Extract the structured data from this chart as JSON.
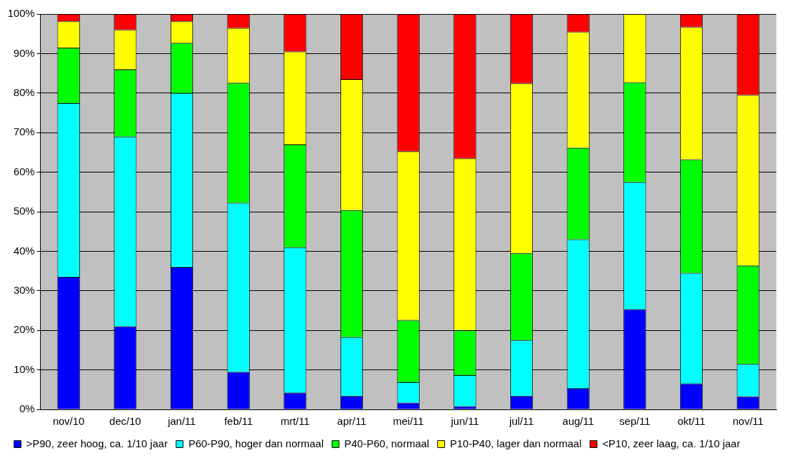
{
  "chart_data": {
    "type": "bar",
    "stacked": true,
    "categories": [
      "nov/10",
      "dec/10",
      "jan/11",
      "feb/11",
      "mrt/11",
      "apr/11",
      "mei/11",
      "jun/11",
      "jul/11",
      "aug/11",
      "sep/11",
      "okt/11",
      "nov/11"
    ],
    "series": [
      {
        "name": ">P90, zeer hoog, ca. 1/10 jaar",
        "color": "#0000ff",
        "values": [
          33.5,
          21,
          36,
          9.5,
          4.2,
          3.4,
          1.7,
          0.8,
          3.4,
          5.3,
          25.3,
          6.5,
          3.3
        ]
      },
      {
        "name": "P60-P90, hoger dan normaal",
        "color": "#00ffff",
        "values": [
          44,
          48,
          44,
          42.7,
          36.8,
          14.9,
          5.2,
          7.9,
          14.1,
          37.7,
          32.2,
          28,
          8.2
        ]
      },
      {
        "name": "P40-P60, normaal",
        "color": "#00ff00",
        "values": [
          14,
          17,
          12.7,
          30.4,
          26,
          32.1,
          15.7,
          11.3,
          22,
          23.2,
          25.2,
          28.7,
          24.9
        ]
      },
      {
        "name": "P10-P40, lager dan normaal",
        "color": "#ffff00",
        "values": [
          6.7,
          10,
          5.5,
          13.9,
          23.5,
          33.1,
          42.7,
          43.5,
          43,
          29.3,
          17.3,
          33.5,
          43.1
        ]
      },
      {
        "name": "<P10, zeer laag, ca. 1/10 jaar",
        "color": "#ff0000",
        "values": [
          1.8,
          4,
          1.8,
          3.5,
          9.5,
          16.5,
          34.7,
          36.5,
          17.5,
          4.5,
          0,
          3.3,
          20.5
        ]
      }
    ],
    "ylim": [
      0,
      100
    ],
    "yticks": [
      {
        "value": 0,
        "label": "0%"
      },
      {
        "value": 10,
        "label": "10%"
      },
      {
        "value": 20,
        "label": "20%"
      },
      {
        "value": 30,
        "label": "30%"
      },
      {
        "value": 40,
        "label": "40%"
      },
      {
        "value": 50,
        "label": "50%"
      },
      {
        "value": 60,
        "label": "60%"
      },
      {
        "value": 70,
        "label": "70%"
      },
      {
        "value": 80,
        "label": "80%"
      },
      {
        "value": 90,
        "label": "90%"
      },
      {
        "value": 100,
        "label": "100%"
      }
    ],
    "grid": "y",
    "legend": "bottom"
  }
}
